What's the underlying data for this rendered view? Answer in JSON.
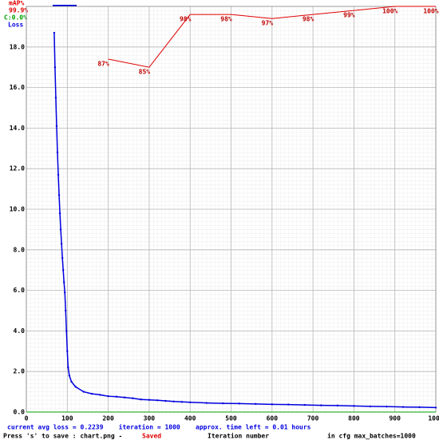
{
  "chart_data": {
    "type": "line",
    "xlabel": "Iteration number",
    "xlim": [
      0,
      1000
    ],
    "ylim": [
      0,
      20
    ],
    "y2lim": [
      0,
      100
    ],
    "grid": true,
    "xticks": [
      0,
      100,
      200,
      300,
      400,
      500,
      600,
      700,
      800,
      900,
      1000
    ],
    "yticks": [
      {
        "value": 0,
        "label": "0.0"
      },
      {
        "value": 2,
        "label": "2.0"
      },
      {
        "value": 4,
        "label": "4.0"
      },
      {
        "value": 6,
        "label": "6.0"
      },
      {
        "value": 8,
        "label": "8.0"
      },
      {
        "value": 10,
        "label": "10.0"
      },
      {
        "value": 12,
        "label": "12.0"
      },
      {
        "value": 14,
        "label": "14.0"
      },
      {
        "value": 16,
        "label": "16.0"
      },
      {
        "value": 18,
        "label": "18.0"
      }
    ],
    "series": [
      {
        "name": "mAP%",
        "color": "#e00000",
        "axis": "y2",
        "x": [
          200,
          300,
          400,
          500,
          600,
          700,
          800,
          900,
          1000
        ],
        "values": [
          87,
          85,
          98,
          98,
          97,
          98,
          99,
          100,
          100
        ],
        "value_labels": [
          "87%",
          "85%",
          "98%",
          "98%",
          "97%",
          "98%",
          "99%",
          "100%",
          "100%"
        ]
      },
      {
        "name": "Loss",
        "color": "#0000e0",
        "x": [
          68,
          70,
          72,
          74,
          76,
          78,
          80,
          82,
          84,
          86,
          88,
          90,
          92,
          94,
          96,
          98,
          100,
          102,
          105,
          110,
          120,
          140,
          160,
          180,
          200,
          220,
          240,
          260,
          280,
          300,
          320,
          340,
          360,
          380,
          400,
          440,
          480,
          520,
          560,
          600,
          640,
          680,
          720,
          760,
          800,
          840,
          880,
          920,
          960,
          1000
        ],
        "values": [
          18.7,
          17.0,
          15.5,
          14.1,
          12.8,
          11.7,
          10.7,
          9.8,
          9.0,
          8.3,
          7.6,
          7.0,
          6.4,
          5.9,
          5.0,
          4.0,
          3.0,
          2.2,
          1.8,
          1.5,
          1.25,
          1.0,
          0.9,
          0.85,
          0.78,
          0.76,
          0.72,
          0.68,
          0.62,
          0.6,
          0.58,
          0.55,
          0.52,
          0.5,
          0.48,
          0.45,
          0.43,
          0.42,
          0.4,
          0.38,
          0.37,
          0.35,
          0.33,
          0.32,
          0.3,
          0.28,
          0.27,
          0.25,
          0.24,
          0.22
        ]
      }
    ],
    "annotations": [
      "99.9%",
      "C:0.0%"
    ],
    "status": "current avg loss = 0.2239    iteration = 1000    approx. time left = 0.01 hours",
    "save_hint": "Press 's' to save : chart.png -",
    "save_state": "Saved",
    "cfg_note": "in cfg max_batches=1000"
  }
}
